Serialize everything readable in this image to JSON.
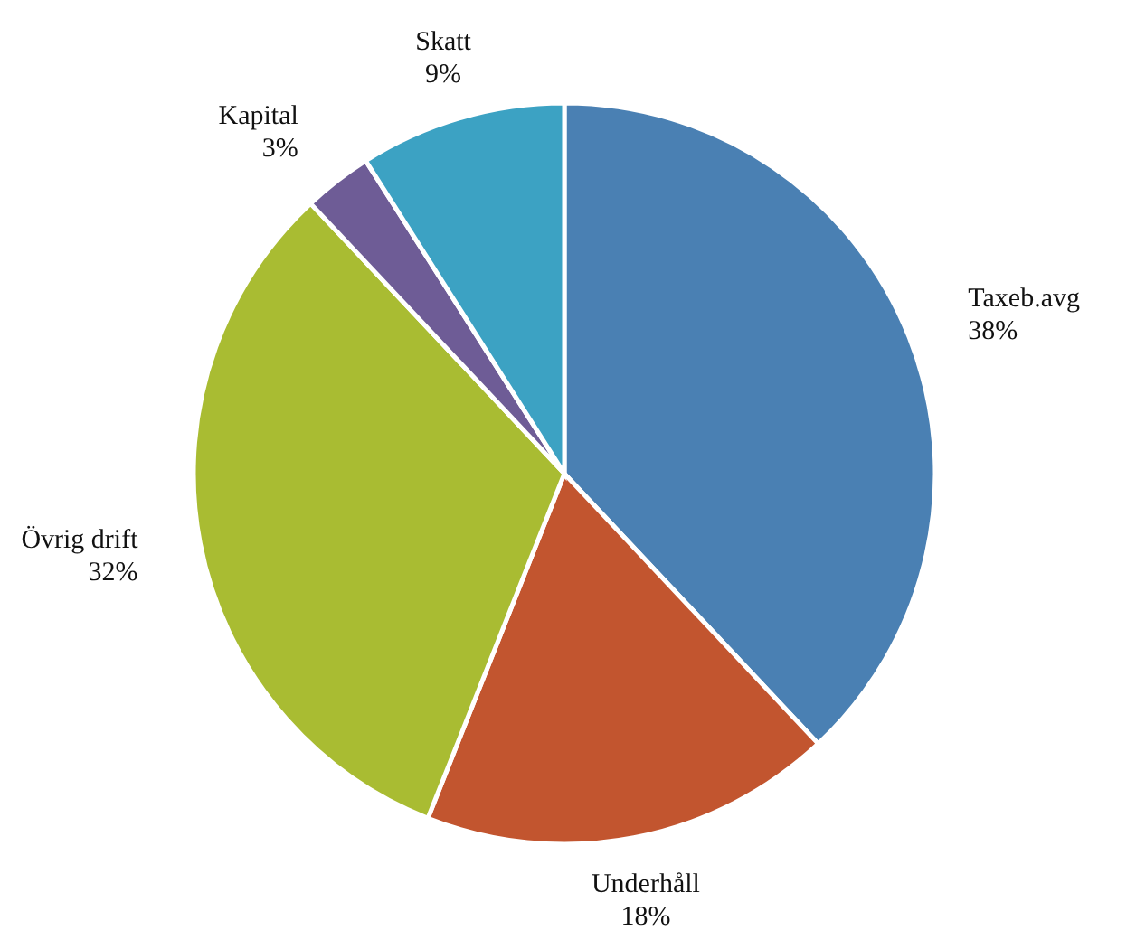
{
  "chart_data": {
    "type": "pie",
    "categories": [
      "Taxeb.avg",
      "Underhåll",
      "Övrig drift",
      "Kapital",
      "Skatt"
    ],
    "values": [
      38,
      18,
      32,
      3,
      9
    ],
    "value_labels": [
      "38%",
      "18%",
      "32%",
      "3%",
      "9%"
    ],
    "colors": [
      "#4a80b3",
      "#c2552f",
      "#a9bc32",
      "#6e5c96",
      "#3ca2c3"
    ]
  }
}
